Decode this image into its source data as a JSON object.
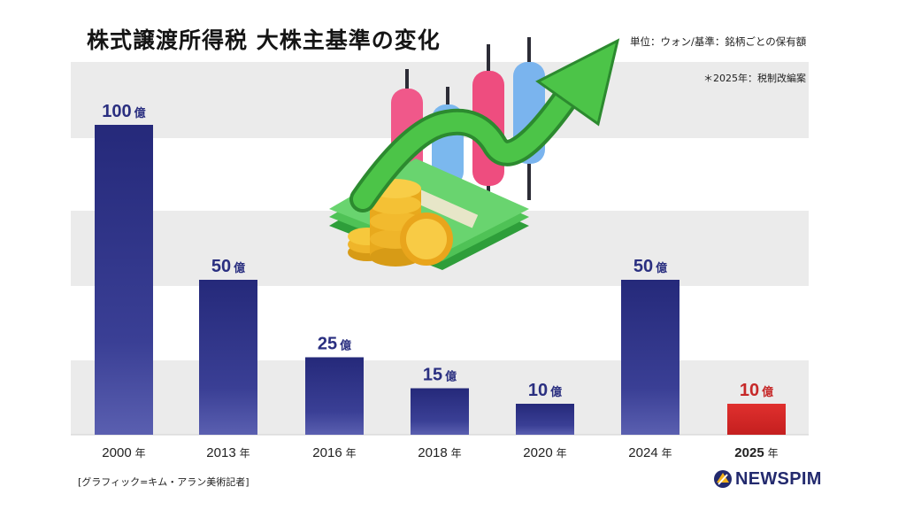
{
  "header": {
    "title": "株式譲渡所得税 大株主基準の変化",
    "unit_note": "単位：ウォン/基準：銘柄ごとの保有額",
    "footnote": "＊2025年：税制改編案"
  },
  "footer": {
    "credit": "[グラフィック=キム・アラン美術記者]",
    "logo_text": "NEWSPIM"
  },
  "colors": {
    "bar": "#2a2f80",
    "bar_highlight": "#d62b2b",
    "value_text": "#2a2f80",
    "value_highlight": "#c62828"
  },
  "icons": [
    "candlestick-growth-illustration",
    "money-coins-illustration",
    "newspim-logo-icon"
  ],
  "chart_data": {
    "type": "bar",
    "title": "株式譲渡所得税 大株主基準の変化",
    "categories": [
      "2000",
      "2013",
      "2016",
      "2018",
      "2020",
      "2024",
      "2025"
    ],
    "values": [
      100,
      50,
      25,
      15,
      10,
      50,
      10
    ],
    "value_labels": [
      "100",
      "50",
      "25",
      "15",
      "10",
      "50",
      "10"
    ],
    "value_unit": "億",
    "category_unit": "年",
    "highlight_index": 6,
    "ylim": [
      0,
      100
    ],
    "grid": false,
    "legend": "none"
  }
}
